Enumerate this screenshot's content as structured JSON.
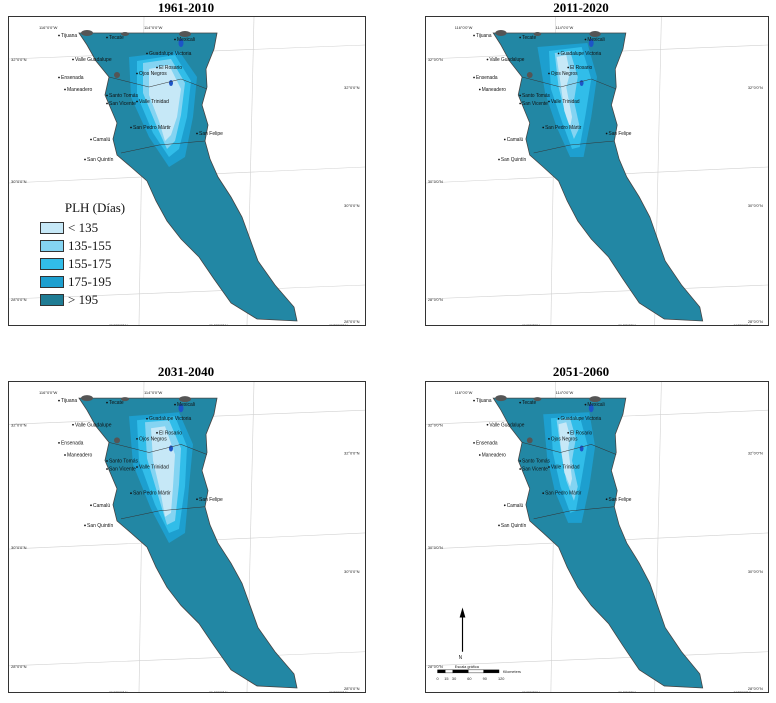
{
  "panels": [
    {
      "period": "1961-2010"
    },
    {
      "period": "2011-2020"
    },
    {
      "period": "2031-2040"
    },
    {
      "period": "2051-2060"
    }
  ],
  "legend": {
    "title": "PLH (Días)",
    "classes": [
      {
        "label": "< 135",
        "color": "#c6e8f7"
      },
      {
        "label": "135-155",
        "color": "#84d4f2"
      },
      {
        "label": "155-175",
        "color": "#31bde9"
      },
      {
        "label": "175-195",
        "color": "#1d9fcf"
      },
      {
        "label": "> 195",
        "color": "#1f7c94"
      }
    ]
  },
  "colors": {
    "land": "#2287a4",
    "border": "#444444",
    "urban": "#555555",
    "water": "#1d55c8"
  },
  "places": [
    "Tijuana",
    "Tecate",
    "Mexicali",
    "Valle Guadalupe",
    "Guadalupe Victoria",
    "Ensenada",
    "El Rosario",
    "Ojos Negros",
    "Maneadero",
    "Santo Tomás",
    "San Vicente",
    "Valle Trinidad",
    "San Pedro Mártir",
    "San Felipe",
    "Camalú",
    "San Quintín"
  ],
  "coords": {
    "top": [
      "116°0'0\"W",
      "114°0'0\"W"
    ],
    "bottom": [
      "116°0'0\"W",
      "114°0'0\"W",
      "112°0'0\"W"
    ],
    "left": [
      "32°0'0\"N",
      "30°0'0\"N",
      "28°0'0\"N"
    ],
    "right": [
      "32°0'0\"N",
      "30°0'0\"N",
      "28°0'0\"N"
    ]
  },
  "scalebar": {
    "ticks": [
      "0",
      "15",
      "30",
      "60",
      "90",
      "120"
    ],
    "unit": "Kilometers",
    "caption": "Escala gráfica"
  },
  "north_label": "N"
}
